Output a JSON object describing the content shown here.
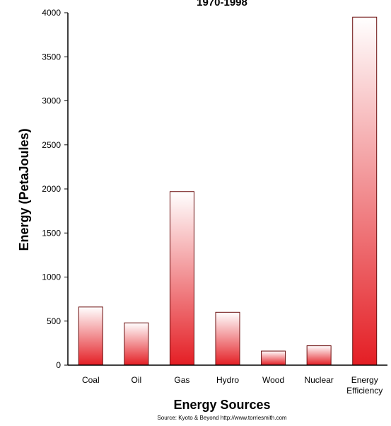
{
  "chart_data": {
    "type": "bar",
    "title": "1970-1998",
    "xlabel": "Energy Sources",
    "ylabel": "Energy (PetaJoules)",
    "source": "Source: Kyoto & Beyond http://www.torriesmith.com",
    "categories": [
      "Coal",
      "Oil",
      "Gas",
      "Hydro",
      "Wood",
      "Nuclear",
      "Energy Efficiency"
    ],
    "category_lines": [
      [
        "Coal"
      ],
      [
        "Oil"
      ],
      [
        "Gas"
      ],
      [
        "Hydro"
      ],
      [
        "Wood"
      ],
      [
        "Nuclear"
      ],
      [
        "Energy",
        "Efficiency"
      ]
    ],
    "values": [
      660,
      480,
      1970,
      600,
      160,
      220,
      3950
    ],
    "ylim": [
      0,
      4000
    ],
    "yticks": [
      0,
      500,
      1000,
      1500,
      2000,
      2500,
      3000,
      3500,
      4000
    ],
    "grid": false,
    "legend": "none",
    "colors": {
      "bar_top": "#ffffff",
      "bar_bottom": "#e41e24",
      "bar_stroke": "#6b0d0d",
      "axis": "#000000"
    }
  }
}
